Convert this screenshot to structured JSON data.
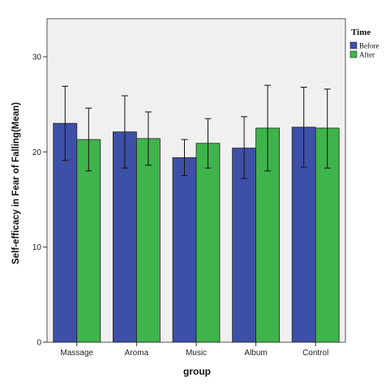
{
  "chart_data": {
    "type": "bar",
    "title": "",
    "xlabel": "group",
    "ylabel": "Self-efficacy in Fear of Falling(Mean)",
    "categories": [
      "Massage",
      "Aroma",
      "Music",
      "Album",
      "Control"
    ],
    "legend_title": "Time",
    "legend_position": "top-right",
    "ylim": [
      0,
      34
    ],
    "yticks": [
      0,
      10,
      20,
      30
    ],
    "grid": false,
    "series": [
      {
        "name": "Before",
        "color": "#3e4fa8",
        "values": [
          23.0,
          22.1,
          19.4,
          20.4,
          22.6
        ],
        "error_low": [
          19.1,
          18.3,
          17.5,
          17.2,
          18.4
        ],
        "error_high": [
          26.9,
          25.9,
          21.3,
          23.7,
          26.8
        ]
      },
      {
        "name": "After",
        "color": "#3fb44b",
        "values": [
          21.3,
          21.4,
          20.9,
          22.5,
          22.5
        ],
        "error_low": [
          18.0,
          18.6,
          18.3,
          18.0,
          18.3
        ],
        "error_high": [
          24.6,
          24.2,
          23.5,
          27.0,
          26.6
        ]
      }
    ],
    "plot_background": "#f0f0f0"
  }
}
